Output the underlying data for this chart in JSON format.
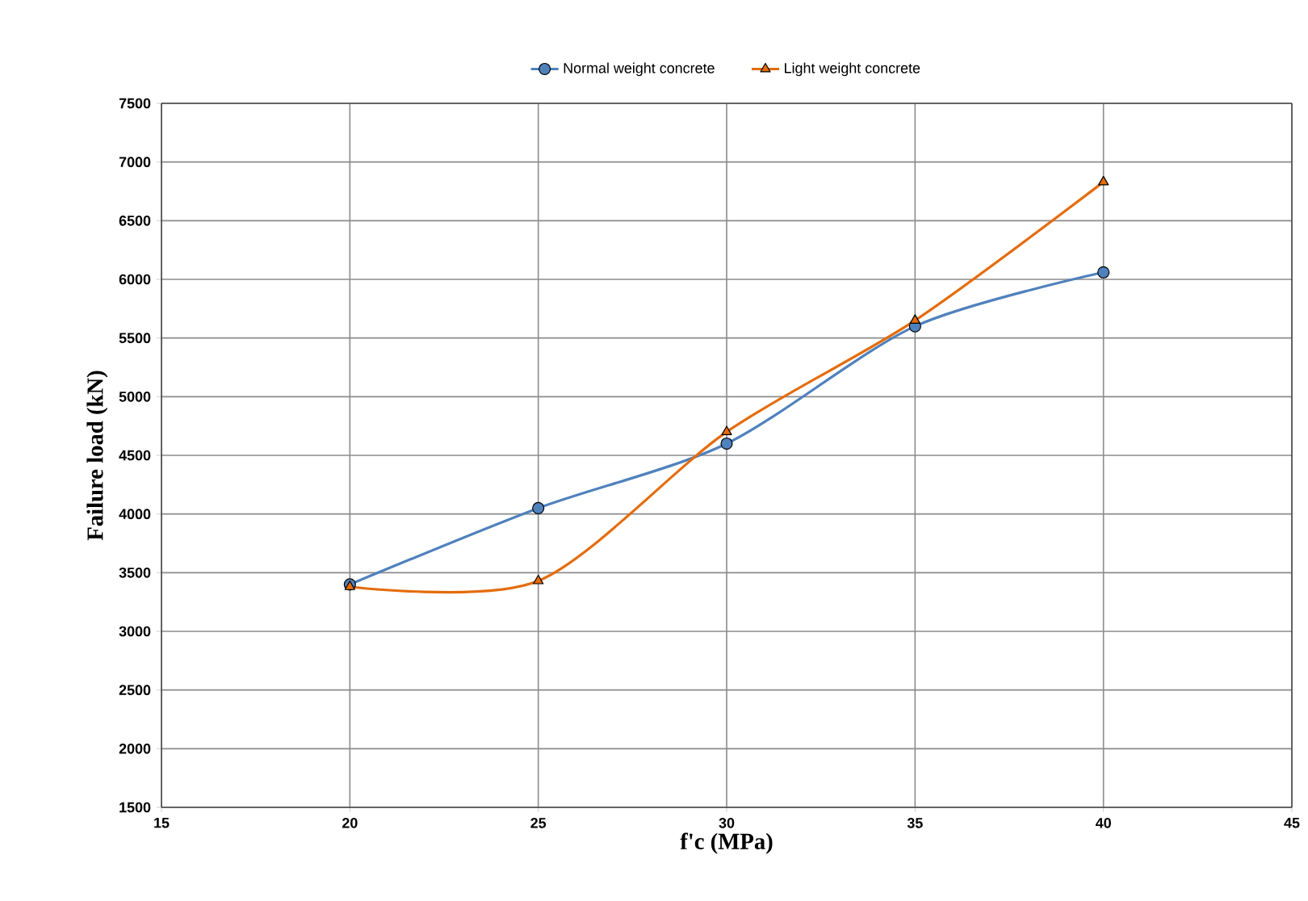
{
  "chart_data": {
    "type": "line",
    "xlabel": "f'c (MPa)",
    "ylabel": "Failure load (kN)",
    "x": [
      20,
      25,
      30,
      35,
      40
    ],
    "series": [
      {
        "name": "Normal weight concrete",
        "color": "#4f81bd",
        "marker": "circle",
        "values": [
          3400,
          4050,
          4600,
          5600,
          6060
        ]
      },
      {
        "name": "Light weight concrete",
        "color": "#e46c0a",
        "marker": "triangle",
        "values": [
          3380,
          3430,
          4700,
          5650,
          6830
        ]
      }
    ],
    "xlim": [
      15,
      45
    ],
    "xticks": [
      15,
      20,
      25,
      30,
      35,
      40,
      45
    ],
    "ylim": [
      1500,
      7500
    ],
    "yticks": [
      1500,
      2000,
      2500,
      3000,
      3500,
      4000,
      4500,
      5000,
      5500,
      6000,
      6500,
      7000,
      7500
    ],
    "grid": true,
    "legend": "top"
  }
}
